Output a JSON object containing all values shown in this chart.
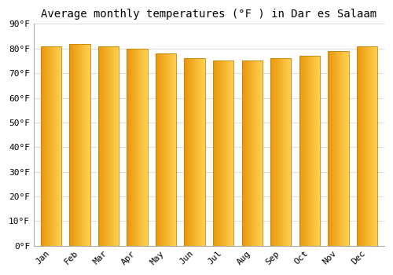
{
  "title": "Average monthly temperatures (°F ) in Dar es Salaam",
  "months": [
    "Jan",
    "Feb",
    "Mar",
    "Apr",
    "May",
    "Jun",
    "Jul",
    "Aug",
    "Sep",
    "Oct",
    "Nov",
    "Dec"
  ],
  "temperatures": [
    81,
    82,
    81,
    80,
    78,
    76,
    75,
    75,
    76,
    77,
    79,
    81
  ],
  "ylim": [
    0,
    90
  ],
  "yticks": [
    0,
    10,
    20,
    30,
    40,
    50,
    60,
    70,
    80,
    90
  ],
  "ytick_labels": [
    "0°F",
    "10°F",
    "20°F",
    "30°F",
    "40°F",
    "50°F",
    "60°F",
    "70°F",
    "80°F",
    "90°F"
  ],
  "bar_color_dark": "#E8960A",
  "bar_color_light": "#FFD050",
  "bar_edge_color": "#C8820A",
  "background_color": "#ffffff",
  "plot_bg_color": "#ffffff",
  "grid_color": "#dddddd",
  "title_fontsize": 10,
  "tick_fontsize": 8,
  "bar_width": 0.72,
  "gradient_steps": 50
}
